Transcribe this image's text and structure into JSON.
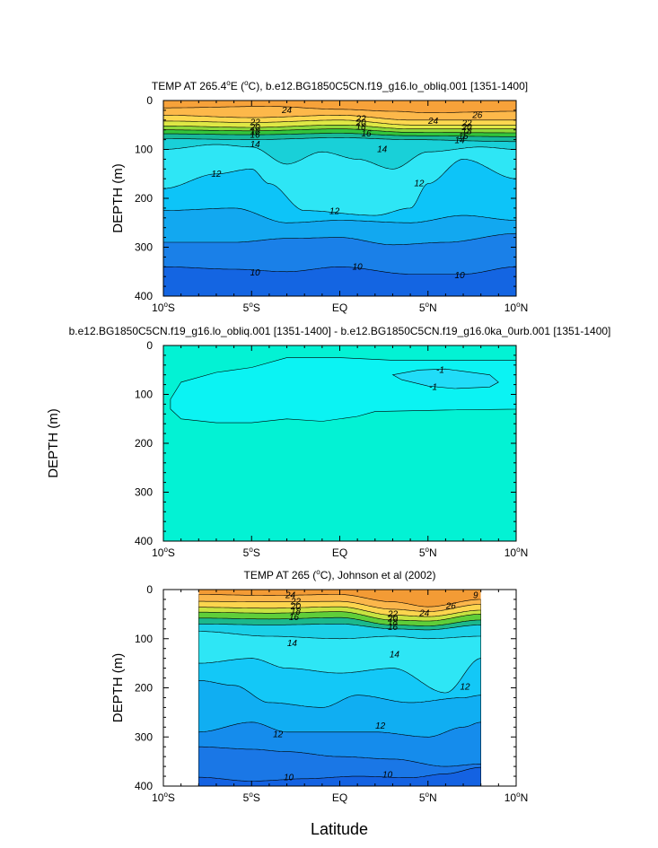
{
  "figure": {
    "xlabel": "Latitude"
  },
  "chart_data": [
    {
      "type": "contour",
      "title": "TEMP AT 265.4°E (°C), b.e12.BG1850C5CN.f19_g16.lo_obliq.001 [1351-1400]",
      "title_parts": {
        "pre": "TEMP AT 265.4",
        "sup": "o",
        "post": "E (",
        "sup2": "o",
        "post2": "C), b.e12.BG1850C5CN.f19_g16.lo_obliq.001 [1351-1400]"
      },
      "ylabel": "DEPTH (m)",
      "xlim": [
        -10,
        10
      ],
      "ylim": [
        400,
        0
      ],
      "x_ticks": [
        {
          "v": -10,
          "n": "10",
          "h": "S"
        },
        {
          "v": -5,
          "n": "5",
          "h": "S"
        },
        {
          "v": 0,
          "n": "EQ",
          "h": ""
        },
        {
          "v": 5,
          "n": "5",
          "h": "N"
        },
        {
          "v": 10,
          "n": "10",
          "h": "N"
        }
      ],
      "y_ticks": [
        0,
        100,
        200,
        300,
        400
      ],
      "contour_labels": [
        {
          "x": -3.0,
          "y": 20,
          "text": "24"
        },
        {
          "x": -4.8,
          "y": 45,
          "text": "22"
        },
        {
          "x": -4.8,
          "y": 55,
          "text": "20"
        },
        {
          "x": -4.8,
          "y": 63,
          "text": "18"
        },
        {
          "x": -4.8,
          "y": 71,
          "text": "16"
        },
        {
          "x": -4.8,
          "y": 90,
          "text": "14"
        },
        {
          "x": 1.2,
          "y": 38,
          "text": "22"
        },
        {
          "x": 1.2,
          "y": 46,
          "text": "20"
        },
        {
          "x": 1.2,
          "y": 54,
          "text": "18"
        },
        {
          "x": 1.5,
          "y": 68,
          "text": "16"
        },
        {
          "x": 2.4,
          "y": 100,
          "text": "14"
        },
        {
          "x": 5.3,
          "y": 42,
          "text": "24"
        },
        {
          "x": 7.8,
          "y": 30,
          "text": "26"
        },
        {
          "x": 7.2,
          "y": 47,
          "text": "22"
        },
        {
          "x": 7.2,
          "y": 55,
          "text": "20"
        },
        {
          "x": 7.2,
          "y": 63,
          "text": "18"
        },
        {
          "x": 7.0,
          "y": 73,
          "text": "16"
        },
        {
          "x": 6.8,
          "y": 82,
          "text": "14"
        },
        {
          "x": -7.0,
          "y": 150,
          "text": "12"
        },
        {
          "x": -0.3,
          "y": 227,
          "text": "12"
        },
        {
          "x": 4.5,
          "y": 170,
          "text": "12"
        },
        {
          "x": -4.8,
          "y": 352,
          "text": "10"
        },
        {
          "x": 1.0,
          "y": 340,
          "text": "10"
        },
        {
          "x": 6.8,
          "y": 358,
          "text": "10"
        }
      ]
    },
    {
      "type": "contour",
      "title": "b.e12.BG1850C5CN.f19_g16.lo_obliq.001 [1351-1400] - b.e12.BG1850C5CN.f19_g16.0ka_0urb.001 [1351-1400]",
      "ylabel": "DEPTH (m)",
      "xlim": [
        -10,
        10
      ],
      "ylim": [
        400,
        0
      ],
      "x_ticks": [
        {
          "v": -10,
          "n": "10",
          "h": "S"
        },
        {
          "v": -5,
          "n": "5",
          "h": "S"
        },
        {
          "v": 0,
          "n": "EQ",
          "h": ""
        },
        {
          "v": 5,
          "n": "5",
          "h": "N"
        },
        {
          "v": 10,
          "n": "10",
          "h": "N"
        }
      ],
      "y_ticks": [
        0,
        100,
        200,
        300,
        400
      ],
      "contour_labels": [
        {
          "x": 5.7,
          "y": 50,
          "text": "-1"
        },
        {
          "x": 5.3,
          "y": 85,
          "text": "-1"
        }
      ]
    },
    {
      "type": "contour",
      "title": "TEMP AT 265 (°C), Johnson et al (2002)",
      "title_parts": {
        "pre": "TEMP AT 265 (",
        "sup": "o",
        "post": "C), Johnson et al (2002)"
      },
      "ylabel": "DEPTH (m)",
      "xlim": [
        -10,
        10
      ],
      "ylim": [
        400,
        0
      ],
      "data_xlim": [
        -8,
        8
      ],
      "x_ticks": [
        {
          "v": -10,
          "n": "10",
          "h": "S"
        },
        {
          "v": -5,
          "n": "5",
          "h": "S"
        },
        {
          "v": 0,
          "n": "EQ",
          "h": ""
        },
        {
          "v": 5,
          "n": "5",
          "h": "N"
        },
        {
          "v": 10,
          "n": "10",
          "h": "N"
        }
      ],
      "y_ticks": [
        0,
        100,
        200,
        300,
        400
      ],
      "contour_labels": [
        {
          "x": -2.8,
          "y": 12,
          "text": "24"
        },
        {
          "x": -2.5,
          "y": 25,
          "text": "22"
        },
        {
          "x": -2.5,
          "y": 35,
          "text": "20"
        },
        {
          "x": -2.5,
          "y": 45,
          "text": "18"
        },
        {
          "x": -2.6,
          "y": 57,
          "text": "16"
        },
        {
          "x": 3.0,
          "y": 50,
          "text": "22"
        },
        {
          "x": 3.0,
          "y": 59,
          "text": "20"
        },
        {
          "x": 3.0,
          "y": 67,
          "text": "18"
        },
        {
          "x": 3.0,
          "y": 77,
          "text": "16"
        },
        {
          "x": 4.8,
          "y": 48,
          "text": "24"
        },
        {
          "x": 6.3,
          "y": 34,
          "text": "26"
        },
        {
          "x": 7.7,
          "y": 12,
          "text": "9"
        },
        {
          "x": -2.7,
          "y": 110,
          "text": "14"
        },
        {
          "x": 3.1,
          "y": 132,
          "text": "14"
        },
        {
          "x": 7.1,
          "y": 198,
          "text": "12"
        },
        {
          "x": 2.3,
          "y": 278,
          "text": "12"
        },
        {
          "x": -3.5,
          "y": 295,
          "text": "12"
        },
        {
          "x": -2.9,
          "y": 383,
          "text": "10"
        },
        {
          "x": 2.7,
          "y": 377,
          "text": "10"
        }
      ]
    }
  ]
}
